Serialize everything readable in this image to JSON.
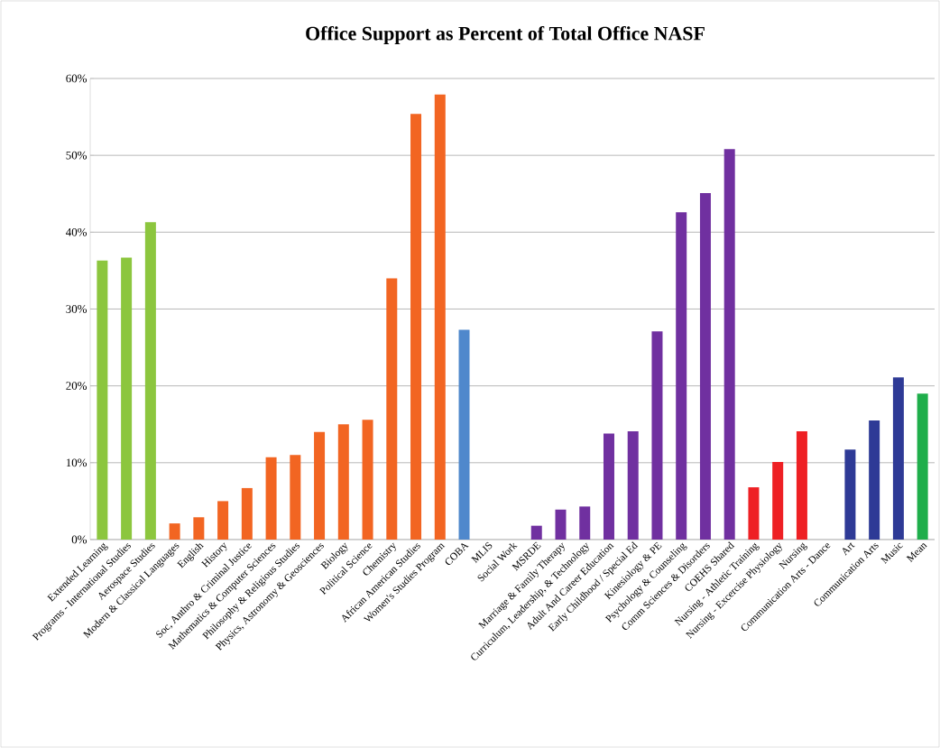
{
  "chart_data": {
    "type": "bar",
    "title": "Office Support as Percent of Total Office NASF",
    "categories": [
      "Extended Learning",
      "Programs - International Studies",
      "Aerospace Studies",
      "Modern & Classical Languages",
      "English",
      "History",
      "Soc, Anthro & Criminal Justice",
      "Mathematics & Computer Sciences",
      "Philosophy & Religious Studies",
      "Physics, Astronomy & Geosciences",
      "Biology",
      "Political Science",
      "Chemistry",
      "African American Studies",
      "Women's Studies Program",
      "COBA",
      "MLIS",
      "Social Work",
      "MSRDE",
      "Marriage & Family Therapy",
      "Curriculum, Leadership, & Technology",
      "Adult And Career Education",
      "Early Childhood / Special Ed",
      "Kinesiology & PE",
      "Psychology & Counseling",
      "Comm Sciences & Disorders",
      "COEHS Shared",
      "Nursing - Athletic Training",
      "Nursing - Excercise Physiology",
      "Nursing",
      "Communication Arts - Dance",
      "Art",
      "Communication Arts",
      "Music",
      "Mean"
    ],
    "values": [
      36.3,
      36.7,
      41.3,
      2.1,
      2.9,
      5.0,
      6.7,
      10.7,
      11.0,
      14.0,
      15.0,
      15.6,
      34.0,
      55.4,
      57.9,
      27.3,
      0,
      0,
      1.8,
      3.9,
      4.3,
      13.8,
      14.1,
      27.1,
      42.6,
      45.1,
      50.8,
      6.8,
      10.1,
      14.1,
      0,
      11.7,
      15.5,
      21.1,
      19.0
    ],
    "colors": [
      "#8cc63e",
      "#8cc63e",
      "#8cc63e",
      "#f26522",
      "#f26522",
      "#f26522",
      "#f26522",
      "#f26522",
      "#f26522",
      "#f26522",
      "#f26522",
      "#f26522",
      "#f26522",
      "#f26522",
      "#f26522",
      "#4f88cc",
      "#7030a0",
      "#7030a0",
      "#7030a0",
      "#7030a0",
      "#7030a0",
      "#7030a0",
      "#7030a0",
      "#7030a0",
      "#7030a0",
      "#7030a0",
      "#7030a0",
      "#ee2024",
      "#ee2024",
      "#ee2024",
      "#2e3a96",
      "#2e3a96",
      "#2e3a96",
      "#2e3a96",
      "#1fae4b"
    ],
    "ylim": [
      0,
      60
    ],
    "yticks": [
      {
        "value": 0,
        "label": "0%"
      },
      {
        "value": 10,
        "label": "10%"
      },
      {
        "value": 20,
        "label": "20%"
      },
      {
        "value": 30,
        "label": "30%"
      },
      {
        "value": 40,
        "label": "40%"
      },
      {
        "value": 50,
        "label": "50%"
      },
      {
        "value": 60,
        "label": "60%"
      }
    ],
    "grid": "y"
  }
}
